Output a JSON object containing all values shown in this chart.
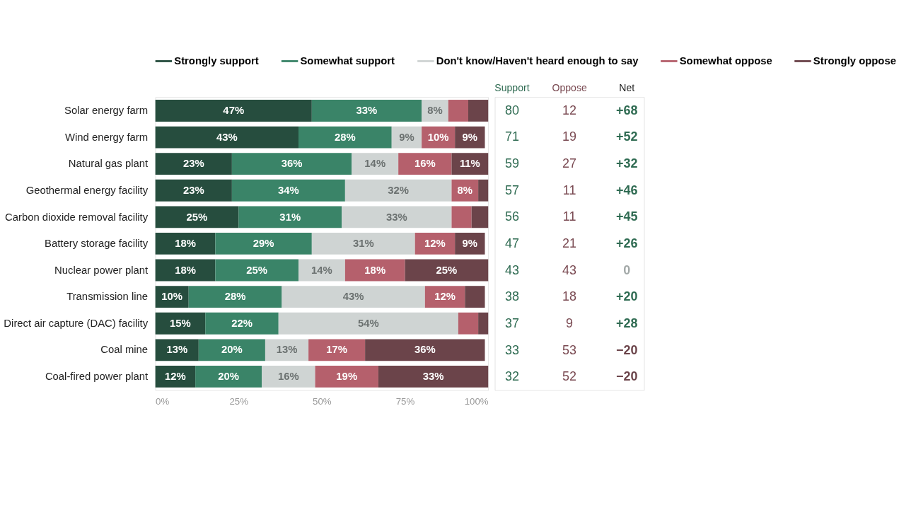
{
  "chart_data": {
    "type": "bar",
    "orientation": "horizontal",
    "stacked": true,
    "legend": "top",
    "grid": false,
    "categories": [
      "Solar energy farm",
      "Wind energy farm",
      "Natural gas plant",
      "Geothermal energy facility",
      "Carbon dioxide removal facility",
      "Battery storage facility",
      "Nuclear power plant",
      "Transmission line",
      "Direct air capture (DAC) facility",
      "Coal mine",
      "Coal-fired power plant"
    ],
    "xlim": [
      0,
      100
    ],
    "xticks": [
      {
        "value": 0,
        "label": "0%"
      },
      {
        "value": 25,
        "label": "25%"
      },
      {
        "value": 50,
        "label": "50%"
      },
      {
        "value": 75,
        "label": "75%"
      },
      {
        "value": 100,
        "label": "100%"
      }
    ],
    "series": [
      {
        "name": "Strongly support",
        "color": "#264d3e",
        "values": [
          47,
          43,
          23,
          23,
          25,
          18,
          18,
          10,
          15,
          13,
          12
        ],
        "value_labels": [
          "47%",
          "43%",
          "23%",
          "23%",
          "25%",
          "18%",
          "18%",
          "10%",
          "15%",
          "13%",
          "12%"
        ]
      },
      {
        "name": "Somewhat support",
        "color": "#3a8468",
        "values": [
          33,
          28,
          36,
          34,
          31,
          29,
          25,
          28,
          22,
          20,
          20
        ],
        "value_labels": [
          "33%",
          "28%",
          "36%",
          "34%",
          "31%",
          "29%",
          "25%",
          "28%",
          "22%",
          "20%",
          "20%"
        ]
      },
      {
        "name": "Don't know/Haven't heard enough to say",
        "color": "#cfd4d3",
        "values": [
          8,
          9,
          14,
          32,
          33,
          31,
          14,
          43,
          54,
          13,
          16
        ],
        "value_labels": [
          "8%",
          "9%",
          "14%",
          "32%",
          "33%",
          "31%",
          "14%",
          "43%",
          "54%",
          "13%",
          "16%"
        ]
      },
      {
        "name": "Somewhat oppose",
        "color": "#b5606c",
        "values": [
          6,
          10,
          16,
          8,
          6,
          12,
          18,
          12,
          6,
          17,
          19
        ],
        "value_labels": [
          null,
          "10%",
          "16%",
          "8%",
          null,
          "12%",
          "18%",
          "12%",
          null,
          "17%",
          "19%"
        ]
      },
      {
        "name": "Strongly oppose",
        "color": "#6b444a",
        "values": [
          6,
          9,
          11,
          3,
          5,
          9,
          25,
          6,
          3,
          36,
          33
        ],
        "value_labels": [
          null,
          "9%",
          "11%",
          null,
          null,
          "9%",
          "25%",
          null,
          null,
          "36%",
          "33%"
        ]
      }
    ],
    "annotations": [
      "Support",
      "Oppose",
      "Net",
      "80",
      "12",
      "+68",
      "71",
      "19",
      "+52",
      "59",
      "27",
      "+32",
      "57",
      "11",
      "+46",
      "56",
      "11",
      "+45",
      "47",
      "21",
      "+26",
      "43",
      "43",
      "0",
      "38",
      "18",
      "+20",
      "37",
      "9",
      "+28",
      "33",
      "53",
      "−20",
      "32",
      "52",
      "−20"
    ]
  }
}
